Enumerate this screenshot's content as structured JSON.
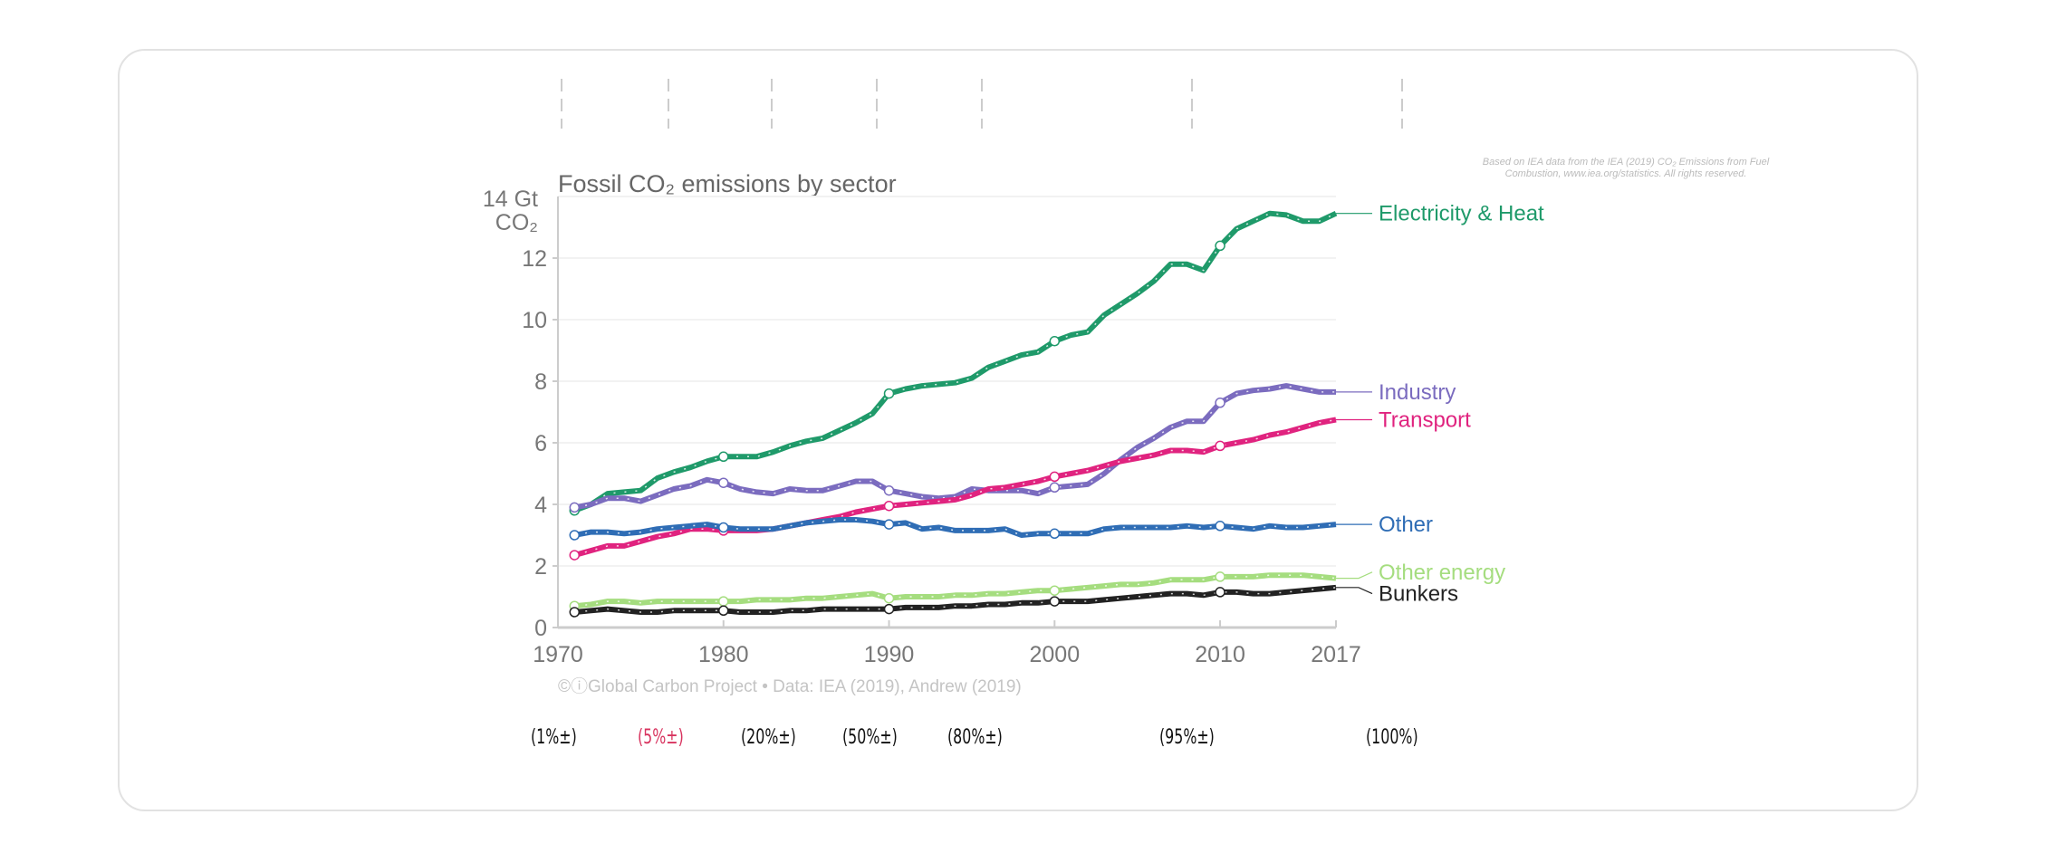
{
  "chart_data": {
    "type": "line",
    "title": "Fossil CO₂ emissions by sector",
    "ylabel": "14 Gt CO₂",
    "ylabel_lines": [
      "14 Gt",
      "CO₂"
    ],
    "source_note": [
      "Based on IEA data from the IEA (2019) CO₂ Emissions from Fuel",
      "Combustion, www.iea.org/statistics. All rights reserved."
    ],
    "credit": "©ⓘGlobal Carbon Project  •  Data: IEA (2019), Andrew (2019)",
    "xlim": [
      1970,
      2017
    ],
    "ylim": [
      0,
      14
    ],
    "x_ticks": [
      1970,
      1980,
      1990,
      2000,
      2010,
      2017
    ],
    "y_ticks": [
      0,
      2,
      4,
      6,
      8,
      10,
      12
    ],
    "grid": true,
    "legend": "right (line-end labels)",
    "x": [
      1971,
      1972,
      1973,
      1974,
      1975,
      1976,
      1977,
      1978,
      1979,
      1980,
      1981,
      1982,
      1983,
      1984,
      1985,
      1986,
      1987,
      1988,
      1989,
      1990,
      1991,
      1992,
      1993,
      1994,
      1995,
      1996,
      1997,
      1998,
      1999,
      2000,
      2001,
      2002,
      2003,
      2004,
      2005,
      2006,
      2007,
      2008,
      2009,
      2010,
      2011,
      2012,
      2013,
      2014,
      2015,
      2016,
      2017
    ],
    "series": [
      {
        "name": "Electricity & Heat",
        "color": "#1f9a6a",
        "values": [
          3.8,
          4.0,
          4.35,
          4.4,
          4.45,
          4.85,
          5.05,
          5.2,
          5.4,
          5.55,
          5.55,
          5.55,
          5.7,
          5.9,
          6.05,
          6.15,
          6.4,
          6.65,
          6.95,
          7.6,
          7.75,
          7.85,
          7.9,
          7.95,
          8.1,
          8.45,
          8.65,
          8.85,
          8.95,
          9.3,
          9.5,
          9.6,
          10.15,
          10.5,
          10.85,
          11.25,
          11.8,
          11.8,
          11.6,
          12.4,
          12.95,
          13.2,
          13.45,
          13.4,
          13.2,
          13.2,
          13.45
        ]
      },
      {
        "name": "Industry",
        "color": "#7b6cbf",
        "values": [
          3.9,
          4.0,
          4.2,
          4.2,
          4.1,
          4.3,
          4.5,
          4.6,
          4.8,
          4.7,
          4.5,
          4.4,
          4.35,
          4.5,
          4.45,
          4.45,
          4.6,
          4.75,
          4.75,
          4.45,
          4.35,
          4.25,
          4.2,
          4.25,
          4.5,
          4.45,
          4.45,
          4.45,
          4.35,
          4.55,
          4.6,
          4.65,
          5.0,
          5.45,
          5.85,
          6.15,
          6.5,
          6.7,
          6.7,
          7.3,
          7.6,
          7.7,
          7.75,
          7.85,
          7.75,
          7.65,
          7.65
        ]
      },
      {
        "name": "Transport",
        "color": "#e0237f",
        "values": [
          2.35,
          2.5,
          2.65,
          2.65,
          2.8,
          2.95,
          3.05,
          3.2,
          3.2,
          3.15,
          3.15,
          3.15,
          3.2,
          3.3,
          3.4,
          3.5,
          3.6,
          3.75,
          3.85,
          3.95,
          4.0,
          4.05,
          4.1,
          4.15,
          4.3,
          4.5,
          4.55,
          4.65,
          4.75,
          4.9,
          5.0,
          5.1,
          5.25,
          5.4,
          5.5,
          5.6,
          5.75,
          5.75,
          5.7,
          5.9,
          6.0,
          6.1,
          6.25,
          6.35,
          6.5,
          6.65,
          6.75
        ]
      },
      {
        "name": "Other",
        "color": "#2f6db5",
        "values": [
          3.0,
          3.1,
          3.1,
          3.05,
          3.1,
          3.2,
          3.25,
          3.3,
          3.35,
          3.25,
          3.2,
          3.2,
          3.2,
          3.3,
          3.4,
          3.45,
          3.5,
          3.5,
          3.45,
          3.35,
          3.4,
          3.2,
          3.25,
          3.15,
          3.15,
          3.15,
          3.2,
          3.0,
          3.05,
          3.05,
          3.05,
          3.05,
          3.2,
          3.25,
          3.25,
          3.25,
          3.25,
          3.3,
          3.25,
          3.3,
          3.25,
          3.2,
          3.3,
          3.25,
          3.25,
          3.3,
          3.35
        ]
      },
      {
        "name": "Other energy",
        "color": "#a5dd7f",
        "values": [
          0.7,
          0.75,
          0.85,
          0.85,
          0.8,
          0.85,
          0.85,
          0.85,
          0.85,
          0.85,
          0.85,
          0.9,
          0.9,
          0.9,
          0.95,
          0.95,
          1.0,
          1.05,
          1.1,
          0.95,
          1.0,
          1.0,
          1.0,
          1.05,
          1.05,
          1.1,
          1.1,
          1.15,
          1.2,
          1.2,
          1.25,
          1.3,
          1.35,
          1.4,
          1.4,
          1.45,
          1.55,
          1.55,
          1.55,
          1.65,
          1.65,
          1.65,
          1.7,
          1.7,
          1.7,
          1.65,
          1.6
        ]
      },
      {
        "name": "Bunkers",
        "color": "#222222",
        "values": [
          0.5,
          0.55,
          0.6,
          0.55,
          0.5,
          0.5,
          0.55,
          0.55,
          0.55,
          0.55,
          0.5,
          0.5,
          0.5,
          0.55,
          0.55,
          0.6,
          0.6,
          0.6,
          0.6,
          0.6,
          0.65,
          0.65,
          0.65,
          0.7,
          0.7,
          0.75,
          0.75,
          0.8,
          0.8,
          0.85,
          0.85,
          0.85,
          0.9,
          0.95,
          1.0,
          1.05,
          1.1,
          1.1,
          1.05,
          1.15,
          1.15,
          1.1,
          1.1,
          1.15,
          1.2,
          1.25,
          1.3
        ]
      }
    ]
  },
  "scale_labels": [
    {
      "text": "(1%±)",
      "color": "#111111"
    },
    {
      "text": "(5%±)",
      "color": "#d8345f"
    },
    {
      "text": "(20%±)",
      "color": "#111111"
    },
    {
      "text": "(50%±)",
      "color": "#111111"
    },
    {
      "text": "(80%±)",
      "color": "#111111"
    },
    {
      "text": "(95%±)",
      "color": "#111111"
    },
    {
      "text": "(100%)",
      "color": "#111111"
    }
  ]
}
